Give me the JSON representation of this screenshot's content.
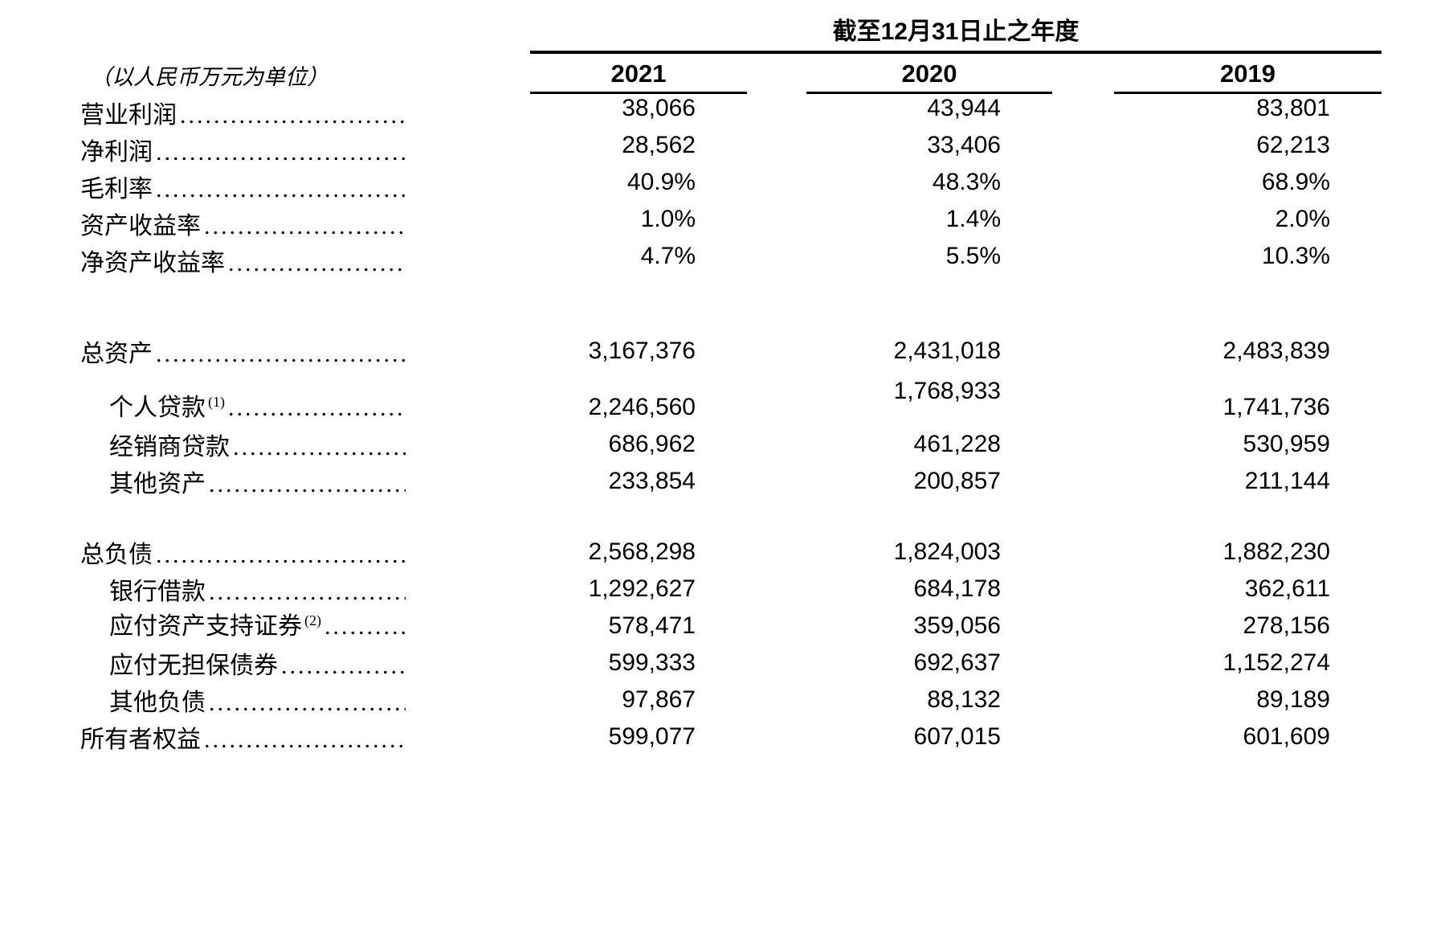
{
  "header": {
    "period_title": "截至12月31日止之年度",
    "unit_note": "（以人民币万元为单位）"
  },
  "columns": [
    "2021",
    "2020",
    "2019"
  ],
  "rows": [
    {
      "label": "营业利润",
      "values": [
        "38,066",
        "43,944",
        "83,801"
      ]
    },
    {
      "label": "净利润",
      "values": [
        "28,562",
        "33,406",
        "62,213"
      ]
    },
    {
      "label": "毛利率",
      "values": [
        "40.9%",
        "48.3%",
        "68.9%"
      ]
    },
    {
      "label": "资产收益率",
      "values": [
        "1.0%",
        "1.4%",
        "2.0%"
      ]
    },
    {
      "label": "净资产收益率",
      "values": [
        "4.7%",
        "5.5%",
        "10.3%"
      ]
    },
    {
      "label": "总资产",
      "values": [
        "3,167,376",
        "2,431,018",
        "2,483,839"
      ]
    },
    {
      "label": "个人贷款",
      "sup": "(1)",
      "values": [
        "2,246,560",
        "1,768,933",
        "1,741,736"
      ]
    },
    {
      "label": "经销商贷款",
      "values": [
        "686,962",
        "461,228",
        "530,959"
      ]
    },
    {
      "label": "其他资产",
      "values": [
        "233,854",
        "200,857",
        "211,144"
      ]
    },
    {
      "label": "总负债",
      "values": [
        "2,568,298",
        "1,824,003",
        "1,882,230"
      ]
    },
    {
      "label": "银行借款",
      "values": [
        "1,292,627",
        "684,178",
        "362,611"
      ]
    },
    {
      "label": "应付资产支持证券",
      "sup": "(2)",
      "values": [
        "578,471",
        "359,056",
        "278,156"
      ]
    },
    {
      "label": "应付无担保债券",
      "values": [
        "599,333",
        "692,637",
        "1,152,274"
      ]
    },
    {
      "label": "其他负债",
      "values": [
        "97,867",
        "88,132",
        "89,189"
      ]
    },
    {
      "label": "所有者权益",
      "values": [
        "599,077",
        "607,015",
        "601,609"
      ]
    }
  ]
}
